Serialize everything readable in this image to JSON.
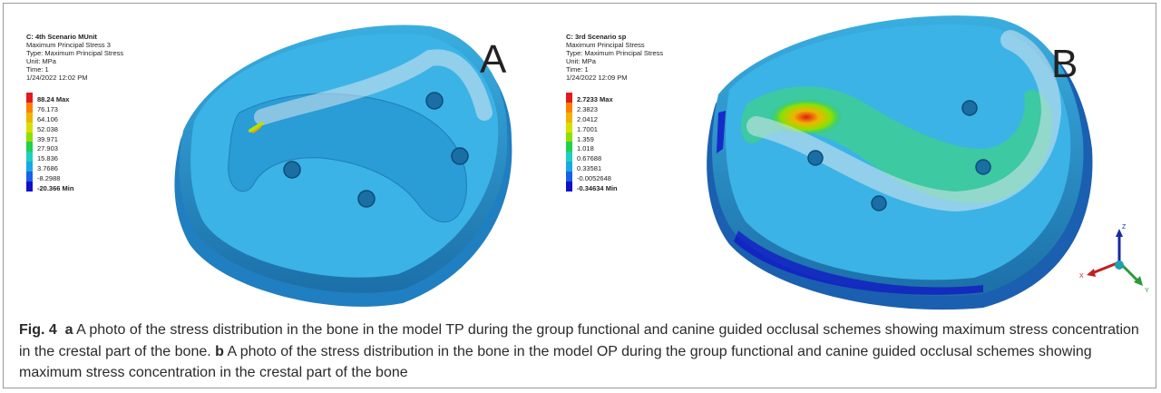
{
  "panel_a": {
    "letter": "A",
    "header": [
      "C: 4th Scenario MUnit",
      "Maximum Principal Stress 3",
      "Type: Maximum Principal Stress",
      "Unit: MPa",
      "Time: 1",
      "1/24/2022 12:02 PM"
    ],
    "max_label": "88.24 Max",
    "ticks": [
      "76.173",
      "64.106",
      "52.038",
      "39.971",
      "27.903",
      "15.836",
      "3.7686",
      "-8.2988"
    ],
    "min_label": "-20.366 Min",
    "colors": [
      "#e31a1c",
      "#ff7f00",
      "#f0b400",
      "#d8e000",
      "#8ee000",
      "#22d04a",
      "#1ed0c0",
      "#18a8e8",
      "#1860e8",
      "#1010c8"
    ]
  },
  "panel_b": {
    "letter": "B",
    "header": [
      "C: 3rd Scenario sp",
      "Maximum Principal Stress",
      "Type: Maximum Principal Stress",
      "Unit: MPa",
      "Time: 1",
      "1/24/2022 12:09 PM"
    ],
    "max_label": "2.7233 Max",
    "ticks": [
      "2.3823",
      "2.0412",
      "1.7001",
      "1.359",
      "1.018",
      "0.67688",
      "0.33581",
      "-0.0052648"
    ],
    "min_label": "-0.34634 Min",
    "colors": [
      "#e31a1c",
      "#ff7f00",
      "#f0b400",
      "#d8e000",
      "#8ee000",
      "#22d04a",
      "#1ed0c0",
      "#18a8e8",
      "#1860e8",
      "#1010c8"
    ]
  },
  "axes": {
    "z": "Z",
    "x": "X",
    "y": "Y"
  },
  "caption": {
    "fig": "Fig. 4",
    "a_label": "a",
    "a_text": "A photo of the stress distribution in the bone in the model TP during the group functional and canine guided occlusal schemes showing maximum stress concentration in the crestal part of the bone.",
    "b_label": "b",
    "b_text": "A photo of the stress distribution in the bone in the model OP during the group functional and canine guided occlusal schemes showing maximum stress concentration in the crestal part of the bone"
  }
}
